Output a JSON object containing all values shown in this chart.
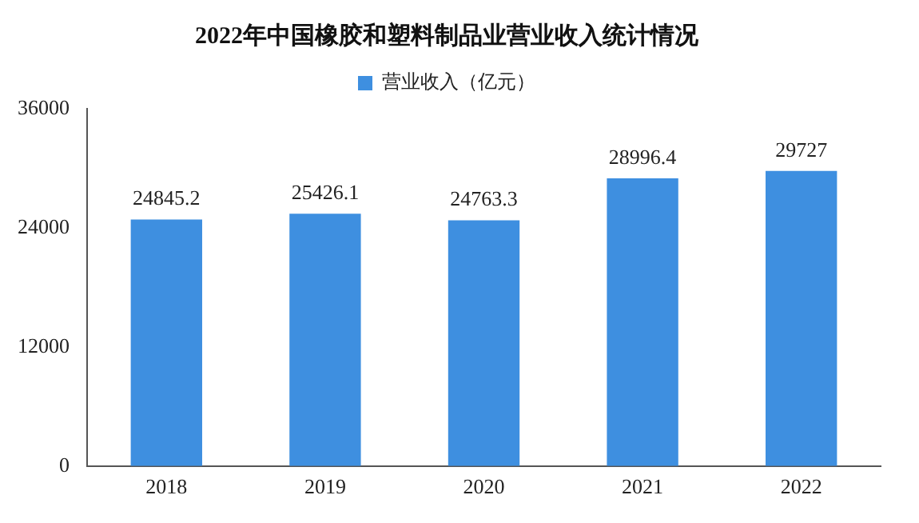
{
  "chart_data": {
    "type": "bar",
    "title": "2022年中国橡胶和塑料制品业营业收入统计情况",
    "categories": [
      "2018",
      "2019",
      "2020",
      "2021",
      "2022"
    ],
    "series": [
      {
        "name": "营业收入（亿元）",
        "color": "#3e8fe0",
        "values": [
          24845.2,
          25426.1,
          24763.3,
          28996.4,
          29727
        ]
      }
    ],
    "ylim": [
      0,
      36000
    ],
    "yticks": [
      0,
      12000,
      24000,
      36000
    ],
    "grid": false,
    "legend": "top",
    "data_labels": true
  }
}
